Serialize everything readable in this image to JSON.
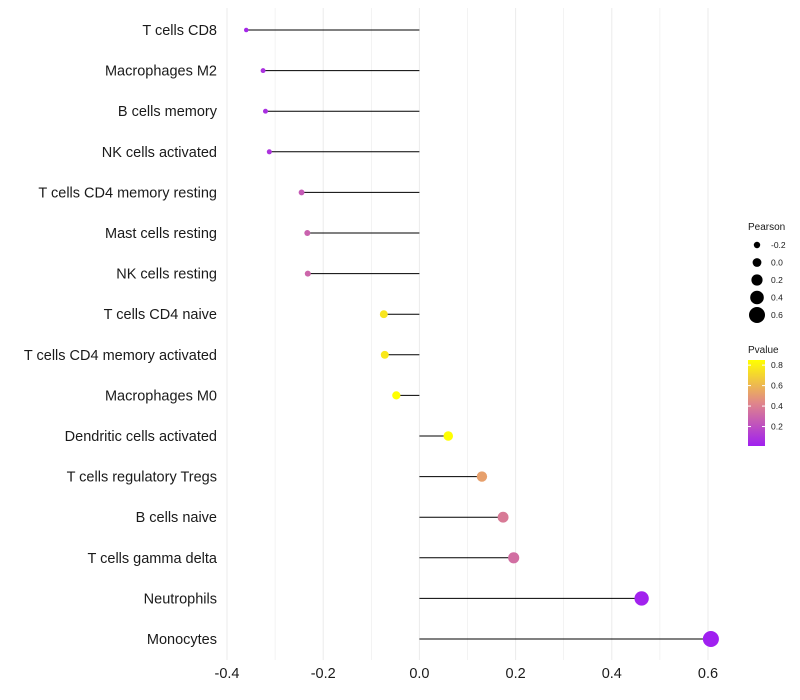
{
  "chart_data": {
    "type": "lollipop",
    "title": "",
    "xlabel": "",
    "ylabel": "",
    "xlim": [
      -0.4,
      0.6
    ],
    "x_ticks": [
      -0.4,
      -0.2,
      0.0,
      0.2,
      0.4,
      0.6
    ],
    "x_tick_labels": [
      "-0.4",
      "-0.2",
      "0.0",
      "0.2",
      "0.4",
      "0.6"
    ],
    "categories": [
      "T cells CD8",
      "Macrophages M2",
      "B cells memory",
      "NK cells activated",
      "T cells CD4 memory resting",
      "Mast cells resting",
      "NK cells resting",
      "T cells CD4 naive",
      "T cells CD4 memory activated",
      "Macrophages M0",
      "Dendritic cells activated",
      "T cells regulatory  Tregs",
      "B cells naive",
      "T cells gamma delta",
      "Neutrophils",
      "Monocytes"
    ],
    "pearson": [
      -0.36,
      -0.325,
      -0.32,
      -0.312,
      -0.245,
      -0.233,
      -0.232,
      -0.074,
      -0.072,
      -0.048,
      0.06,
      0.13,
      0.174,
      0.196,
      0.462,
      0.606
    ],
    "pvalue": [
      0.04,
      0.08,
      0.07,
      0.09,
      0.25,
      0.28,
      0.3,
      0.76,
      0.77,
      0.85,
      0.85,
      0.52,
      0.38,
      0.33,
      0.02,
      0.01
    ],
    "legend_size": {
      "title": "Pearson",
      "values": [
        -0.2,
        0.0,
        0.2,
        0.4,
        0.6
      ],
      "labels": [
        "-0.2",
        "0.0",
        "0.2",
        "0.4",
        "0.6"
      ]
    },
    "legend_color": {
      "title": "Pvalue",
      "range": [
        0.01,
        0.85
      ],
      "ticks": [
        0.2,
        0.4,
        0.6,
        0.8
      ],
      "tick_labels": [
        "0.2",
        "0.4",
        "0.6",
        "0.8"
      ],
      "low_color": "#a020f0",
      "mid_color": "#e0868a",
      "high_color": "#ffff00"
    },
    "stem_color": "#000000",
    "grid_color": "#ebebeb"
  }
}
